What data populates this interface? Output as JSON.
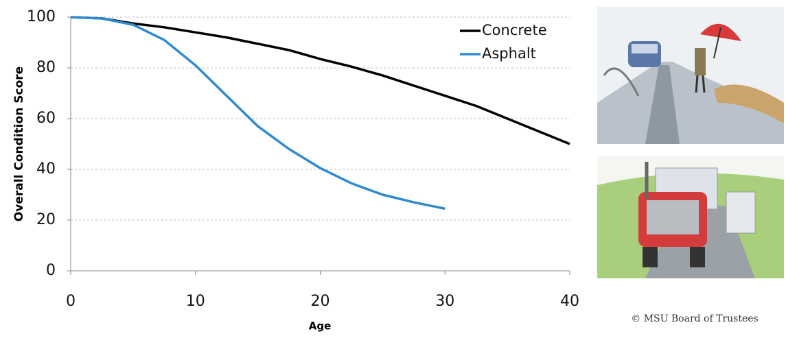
{
  "chart_data": {
    "type": "line",
    "y_label": "Overall Condition Score",
    "x_label": "Age",
    "x": [
      0,
      2.5,
      5,
      7.5,
      10,
      12.5,
      15,
      17.5,
      20,
      22.5,
      25,
      27.5,
      30,
      32.5,
      35,
      37.5,
      40
    ],
    "series": [
      {
        "name": "Concrete",
        "color": "#000000",
        "values": [
          100,
          99.5,
          97.5,
          96,
          94,
          92,
          89.5,
          87,
          83.5,
          80.5,
          77,
          73,
          69,
          65,
          60,
          55,
          50
        ]
      },
      {
        "name": "Asphalt",
        "color": "#2f8ad0",
        "values": [
          100,
          99.5,
          97,
          91,
          81,
          69,
          57,
          48,
          40.5,
          34.5,
          30,
          27,
          24.5,
          null,
          null,
          null,
          null
        ]
      }
    ],
    "xlim": [
      0,
      40
    ],
    "xticks": [
      0,
      10,
      20,
      30,
      40
    ],
    "ylim": [
      0,
      100
    ],
    "yticks": [
      0,
      20,
      40,
      60,
      80,
      100
    ],
    "grid": true,
    "legend": "top-right",
    "credit": "© MSU Board of Trustees"
  }
}
